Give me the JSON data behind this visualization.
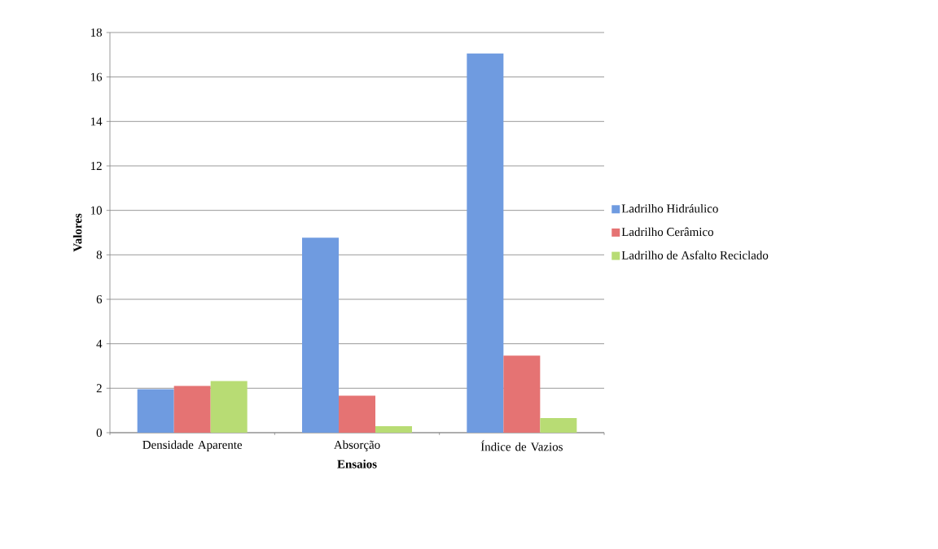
{
  "chart_data": {
    "type": "bar",
    "xlabel": "Ensaios",
    "ylabel": "Valores",
    "categories": [
      "Densidade Aparente",
      "Absorção",
      "Índice de Vazios"
    ],
    "series": [
      {
        "name": "Ladrilho Hidráulico",
        "color": "#6f9be0",
        "values": [
          1.96,
          8.77,
          17.06
        ]
      },
      {
        "name": "Ladrilho Cerâmico",
        "color": "#e57373",
        "values": [
          2.1,
          1.66,
          3.47
        ]
      },
      {
        "name": "Ladrilho de Asfalto Reciclado",
        "color": "#b8dc74",
        "values": [
          2.32,
          0.29,
          0.66
        ]
      }
    ],
    "ylim": [
      0,
      18
    ],
    "yticks": [
      0,
      2,
      4,
      6,
      8,
      10,
      12,
      14,
      16,
      18
    ],
    "grid": "y",
    "legend": "right"
  }
}
